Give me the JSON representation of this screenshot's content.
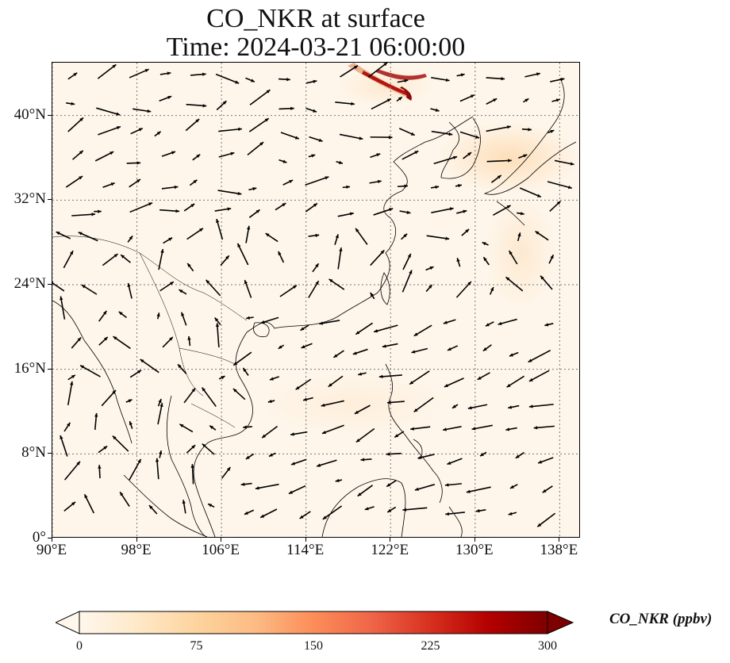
{
  "title": {
    "line1": "CO_NKR at surface",
    "line2": "Time: 2024-03-21 06:00:00"
  },
  "map": {
    "projection": "PlateCarree",
    "lon_range": [
      90,
      140
    ],
    "lat_range": [
      0,
      45
    ],
    "gridlines": "dotted",
    "lon_ticks": [
      {
        "value": 90,
        "label": "90°E"
      },
      {
        "value": 98,
        "label": "98°E"
      },
      {
        "value": 106,
        "label": "106°E"
      },
      {
        "value": 114,
        "label": "114°E"
      },
      {
        "value": 122,
        "label": "122°E"
      },
      {
        "value": 130,
        "label": "130°E"
      },
      {
        "value": 138,
        "label": "138°E"
      }
    ],
    "lat_ticks": [
      {
        "value": 0,
        "label": "0°"
      },
      {
        "value": 8,
        "label": "8°N"
      },
      {
        "value": 16,
        "label": "16°N"
      },
      {
        "value": 24,
        "label": "24°N"
      },
      {
        "value": 32,
        "label": "32°N"
      },
      {
        "value": 40,
        "label": "40°N"
      }
    ],
    "field_background_color": "#fef6ea",
    "plume_color": "#b3150f",
    "vector_color": "#000000"
  },
  "colorbar": {
    "label": "CO_NKR (ppbv)",
    "min": 0,
    "max": 300,
    "extend": "both",
    "colormap": "OrRd",
    "stops": [
      "#fff7ec",
      "#fee8c8",
      "#fdd49e",
      "#fdbb84",
      "#fc8d59",
      "#ef6548",
      "#d7301f",
      "#b30000",
      "#7f0000"
    ],
    "ticks": [
      {
        "value": 0,
        "label": "0"
      },
      {
        "value": 75,
        "label": "75"
      },
      {
        "value": 150,
        "label": "150"
      },
      {
        "value": 225,
        "label": "225"
      },
      {
        "value": 300,
        "label": "300"
      }
    ]
  }
}
